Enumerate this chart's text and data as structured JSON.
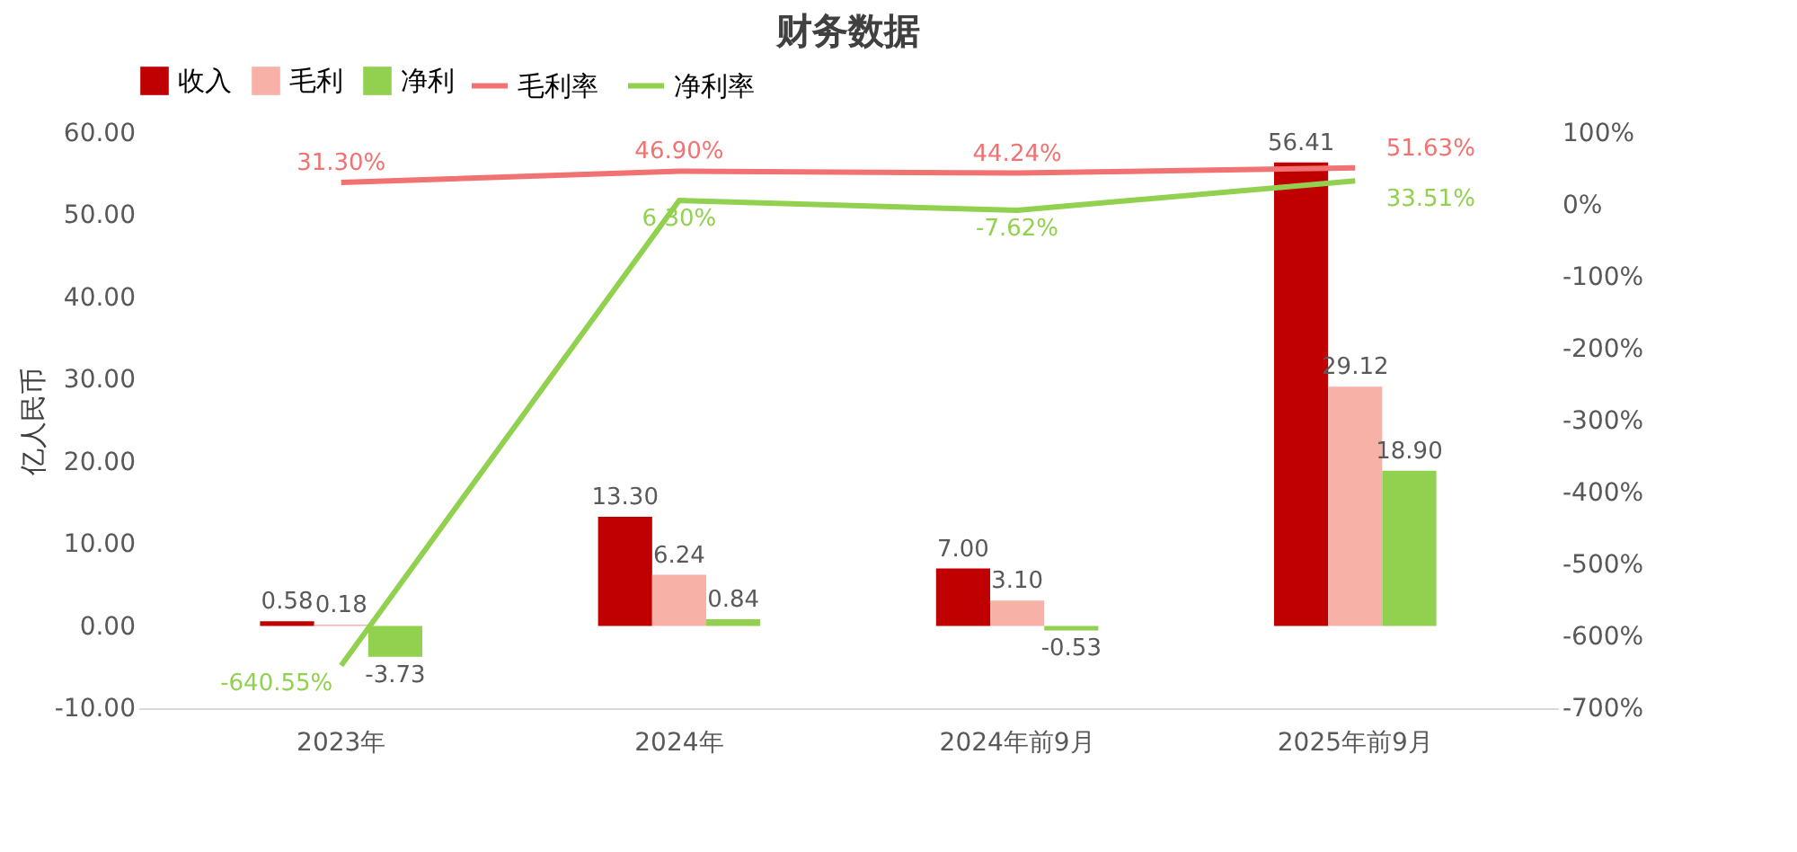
{
  "chart_data": {
    "type": "bar",
    "title": "财务数据",
    "ylabel": "亿人民币",
    "categories": [
      "2023年",
      "2024年",
      "2024年前9月",
      "2025年前9月"
    ],
    "series": [
      {
        "name": "收入",
        "type": "bar",
        "color": "#c00000",
        "values": [
          0.58,
          13.3,
          7.0,
          56.41
        ],
        "value_labels": [
          "0.58",
          "13.30",
          "7.00",
          "56.41"
        ]
      },
      {
        "name": "毛利",
        "type": "bar",
        "color": "#f8b1a7",
        "values": [
          0.18,
          6.24,
          3.1,
          29.12
        ],
        "value_labels": [
          "0.18",
          "6.24",
          "3.10",
          "29.12"
        ]
      },
      {
        "name": "净利",
        "type": "bar",
        "color": "#92d050",
        "values": [
          -3.73,
          0.84,
          -0.53,
          18.9
        ],
        "value_labels": [
          "-3.73",
          "0.84",
          "-0.53",
          "18.90"
        ]
      },
      {
        "name": "毛利率",
        "type": "line",
        "axis": "y2",
        "color": "#f07272",
        "values": [
          31.3,
          46.9,
          44.24,
          51.63
        ],
        "value_labels": [
          "31.30%",
          "46.90%",
          "44.24%",
          "51.63%"
        ]
      },
      {
        "name": "净利率",
        "type": "line",
        "axis": "y2",
        "color": "#92d050",
        "values": [
          -640.55,
          6.3,
          -7.62,
          33.51
        ],
        "value_labels": [
          "-640.55%",
          "6.30%",
          "-7.62%",
          "33.51%"
        ]
      }
    ],
    "ylim": [
      -10,
      60
    ],
    "yticks": [
      {
        "value": -10,
        "label": "-10.00"
      },
      {
        "value": 0,
        "label": "0.00"
      },
      {
        "value": 10,
        "label": "10.00"
      },
      {
        "value": 20,
        "label": "20.00"
      },
      {
        "value": 30,
        "label": "30.00"
      },
      {
        "value": 40,
        "label": "40.00"
      },
      {
        "value": 50,
        "label": "50.00"
      },
      {
        "value": 60,
        "label": "60.00"
      }
    ],
    "y2lim": [
      -700,
      100
    ],
    "y2ticks": [
      {
        "value": -700,
        "label": "-700%"
      },
      {
        "value": -600,
        "label": "-600%"
      },
      {
        "value": -500,
        "label": "-500%"
      },
      {
        "value": -400,
        "label": "-400%"
      },
      {
        "value": -300,
        "label": "-300%"
      },
      {
        "value": -200,
        "label": "-200%"
      },
      {
        "value": -100,
        "label": "-100%"
      },
      {
        "value": 0,
        "label": "0%"
      },
      {
        "value": 100,
        "label": "100%"
      }
    ],
    "legend": "top",
    "grid": false,
    "marker": "none",
    "line_style": "solid"
  }
}
